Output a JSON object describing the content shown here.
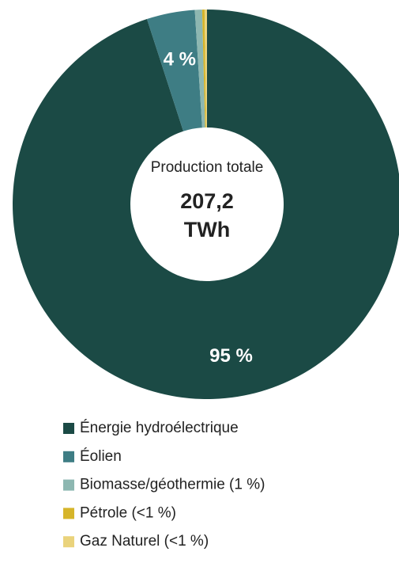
{
  "chart_data": {
    "type": "donut",
    "categories": [
      "Énergie hydroélectrique",
      "Éolien",
      "Biomasse/géothermie (1 %)",
      "Pétrole (<1 %)",
      "Gaz Naturel (<1 %)"
    ],
    "values": [
      95,
      4,
      0.6,
      0.2,
      0.2
    ],
    "value_labels": [
      "95 %",
      "4 %",
      null,
      null,
      null
    ],
    "colors": [
      "#1b4a45",
      "#3e7d84",
      "#8db7b1",
      "#d6b52a",
      "#ead37c"
    ],
    "center_caption": "Production totale",
    "center_value": "207,2",
    "center_unit": "TWh",
    "legend": "bottom"
  }
}
